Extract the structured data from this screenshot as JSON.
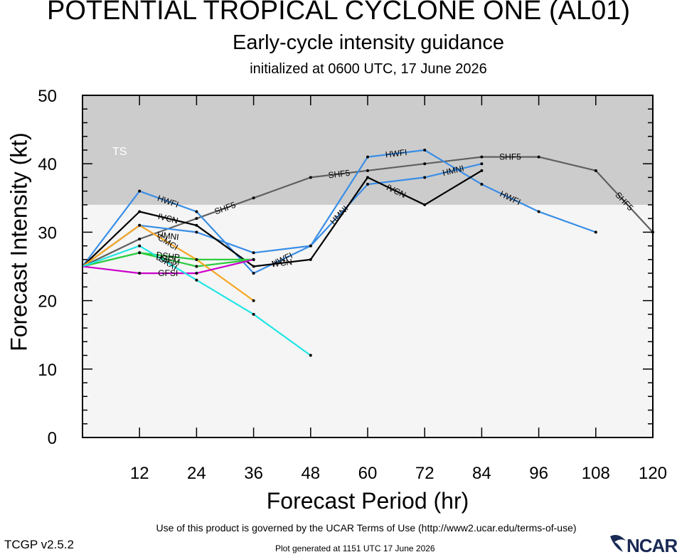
{
  "header": {
    "title": "POTENTIAL TROPICAL CYCLONE ONE (AL01)",
    "subtitle": "Early-cycle intensity guidance",
    "init": "initialized at 0600 UTC, 17 June 2026"
  },
  "footer": {
    "terms": "Use of this product is governed by the UCAR Terms of Use (http://www2.ucar.edu/terms-of-use)",
    "version": "TCGP v2.5.2",
    "generated": "Plot generated at 1151 UTC   17 June 2026",
    "logo": "NCAR"
  },
  "chart_data": {
    "type": "line",
    "title": "POTENTIAL TROPICAL CYCLONE ONE (AL01)",
    "xlabel": "Forecast Period (hr)",
    "ylabel": "Forecast Intensity (kt)",
    "xlim": [
      0,
      120
    ],
    "ylim": [
      0,
      50
    ],
    "xticks": [
      12,
      24,
      36,
      48,
      60,
      72,
      84,
      96,
      108,
      120
    ],
    "yticks": [
      0,
      10,
      20,
      30,
      40,
      50
    ],
    "bands": [
      {
        "label": "TS",
        "from": 34,
        "to": 50,
        "color": "#cccccc"
      }
    ],
    "series": [
      {
        "name": "SHF5",
        "color": "#606060",
        "x": [
          0,
          12,
          24,
          36,
          48,
          60,
          72,
          84,
          96,
          108,
          120
        ],
        "y": [
          25,
          29,
          32,
          35,
          38,
          39,
          40,
          41,
          41,
          39,
          30
        ],
        "labels": [
          {
            "at": 24,
            "dy": 0
          },
          {
            "at": 48,
            "dy": 0
          },
          {
            "at": 84,
            "dy": 0
          },
          {
            "at": 108,
            "dy": 0
          }
        ]
      },
      {
        "name": "HWFI",
        "color": "#3a8ee6",
        "x": [
          0,
          12,
          24,
          36,
          48,
          60,
          72,
          84,
          96,
          108
        ],
        "y": [
          25,
          36,
          33,
          24,
          28,
          41,
          42,
          37,
          33,
          30
        ],
        "labels": [
          {
            "at": 12,
            "dy": 0
          },
          {
            "at": 36,
            "dy": 0
          },
          {
            "at": 60,
            "dy": 0
          },
          {
            "at": 84,
            "dy": 0
          }
        ]
      },
      {
        "name": "HMNI",
        "color": "#3a8ee6",
        "x": [
          0,
          12,
          24,
          36,
          48,
          60,
          72,
          84
        ],
        "y": [
          25,
          31,
          30,
          27,
          28,
          37,
          38,
          40
        ],
        "labels": [
          {
            "at": 12,
            "dy": 1
          },
          {
            "at": 48,
            "dy": 0
          },
          {
            "at": 72,
            "dy": 0
          }
        ]
      },
      {
        "name": "IVCN",
        "color": "#000000",
        "x": [
          0,
          12,
          24,
          36,
          48,
          60,
          72,
          84
        ],
        "y": [
          25,
          33,
          31,
          25,
          26,
          38,
          34,
          39
        ],
        "labels": [
          {
            "at": 12,
            "dy": 0
          },
          {
            "at": 36,
            "dy": 0
          },
          {
            "at": 60,
            "dy": 0
          }
        ]
      },
      {
        "name": "DSHP",
        "color": "#2ecc40",
        "x": [
          0,
          12,
          24,
          36
        ],
        "y": [
          25,
          27,
          26,
          26
        ],
        "labels": [
          {
            "at": 12,
            "dy": 0
          }
        ]
      },
      {
        "name": "LGEM",
        "color": "#2ecc40",
        "x": [
          0,
          12,
          24,
          36
        ],
        "y": [
          25,
          27,
          25,
          26
        ],
        "labels": [
          {
            "at": 12,
            "dy": 0
          }
        ]
      },
      {
        "name": "CMCI",
        "color": "#f5a623",
        "x": [
          0,
          12,
          24,
          36
        ],
        "y": [
          25,
          31,
          26,
          20
        ],
        "labels": [
          {
            "at": 12,
            "dy": 0
          }
        ]
      },
      {
        "name": "GFSI",
        "color": "#cc00cc",
        "x": [
          0,
          12,
          24,
          36
        ],
        "y": [
          25,
          24,
          24,
          26
        ],
        "labels": [
          {
            "at": 12,
            "dy": 0
          }
        ]
      },
      {
        "name": "UKXI",
        "color": "#22e5e5",
        "x": [
          0,
          12,
          24,
          36,
          48
        ],
        "y": [
          25,
          28,
          23,
          18,
          12
        ],
        "labels": [
          {
            "at": 12,
            "dy": 0
          }
        ]
      }
    ]
  }
}
